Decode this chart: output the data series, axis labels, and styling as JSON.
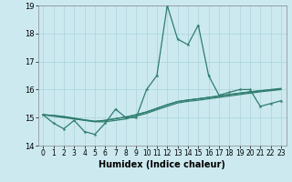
{
  "xlabel": "Humidex (Indice chaleur)",
  "x_values": [
    0,
    1,
    2,
    3,
    4,
    5,
    6,
    7,
    8,
    9,
    10,
    11,
    12,
    13,
    14,
    15,
    16,
    17,
    18,
    19,
    20,
    21,
    22,
    23
  ],
  "line1": [
    15.1,
    14.8,
    14.6,
    14.9,
    14.5,
    14.4,
    14.8,
    15.3,
    15.0,
    15.0,
    16.0,
    16.5,
    19.0,
    17.8,
    17.6,
    18.3,
    16.5,
    15.8,
    15.9,
    16.0,
    16.0,
    15.4,
    15.5,
    15.6
  ],
  "line2": [
    15.1,
    15.05,
    15.0,
    14.95,
    14.9,
    14.85,
    14.85,
    14.9,
    14.95,
    15.05,
    15.15,
    15.28,
    15.4,
    15.52,
    15.58,
    15.62,
    15.67,
    15.72,
    15.77,
    15.82,
    15.87,
    15.92,
    15.96,
    16.0
  ],
  "line3": [
    15.1,
    15.08,
    15.04,
    14.98,
    14.92,
    14.87,
    14.9,
    14.96,
    15.02,
    15.1,
    15.2,
    15.33,
    15.46,
    15.57,
    15.63,
    15.67,
    15.72,
    15.77,
    15.82,
    15.87,
    15.91,
    15.95,
    15.98,
    16.02
  ],
  "line4": [
    15.1,
    15.07,
    15.02,
    14.97,
    14.91,
    14.86,
    14.9,
    14.96,
    15.02,
    15.1,
    15.2,
    15.33,
    15.46,
    15.57,
    15.62,
    15.67,
    15.72,
    15.77,
    15.82,
    15.87,
    15.92,
    15.96,
    16.0,
    16.04
  ],
  "line_color": "#2e7d6e",
  "bg_color": "#cce9f0",
  "grid_color": "#aad4dc",
  "ylim": [
    14.0,
    19.0
  ],
  "xlim": [
    -0.5,
    23.5
  ],
  "yticks": [
    14,
    15,
    16,
    17,
    18,
    19
  ],
  "xticks": [
    0,
    1,
    2,
    3,
    4,
    5,
    6,
    7,
    8,
    9,
    10,
    11,
    12,
    13,
    14,
    15,
    16,
    17,
    18,
    19,
    20,
    21,
    22,
    23
  ]
}
